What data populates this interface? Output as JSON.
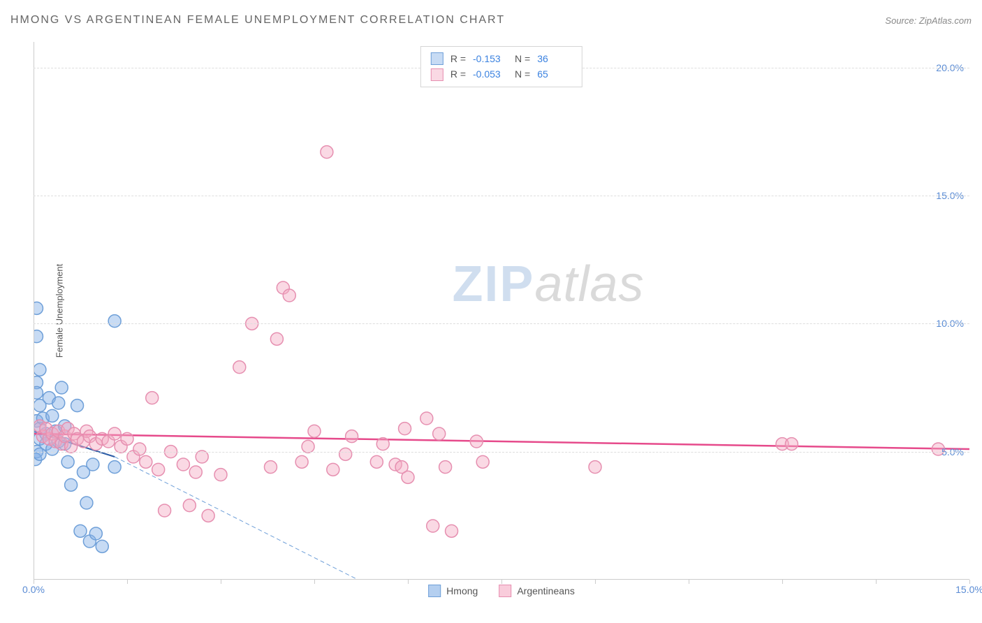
{
  "header": {
    "title": "HMONG VS ARGENTINEAN FEMALE UNEMPLOYMENT CORRELATION CHART",
    "source_label": "Source:",
    "source_value": "ZipAtlas.com"
  },
  "watermark": {
    "zip": "ZIP",
    "atlas": "atlas"
  },
  "chart": {
    "type": "scatter",
    "y_axis_label": "Female Unemployment",
    "background_color": "#ffffff",
    "grid_color": "#dddddd",
    "axis_color": "#cccccc",
    "tick_label_color": "#5b8cd4",
    "xlim": [
      0,
      15
    ],
    "ylim": [
      0,
      21
    ],
    "y_ticks": [
      5,
      10,
      15,
      20
    ],
    "y_tick_labels": [
      "5.0%",
      "10.0%",
      "15.0%",
      "20.0%"
    ],
    "x_ticks": [
      0,
      1.5,
      3,
      4.5,
      6,
      7.5,
      9,
      10.5,
      12,
      13.5,
      15
    ],
    "x_tick_labels_shown": {
      "0": "0.0%",
      "15": "15.0%"
    },
    "marker_radius": 9,
    "marker_stroke_width": 1.5,
    "series": [
      {
        "name": "Hmong",
        "fill_color": "rgba(130,175,230,0.45)",
        "stroke_color": "#6e9fd8",
        "stats": {
          "R": "-0.153",
          "N": "36"
        },
        "points": [
          [
            0.05,
            10.6
          ],
          [
            0.05,
            9.5
          ],
          [
            0.05,
            7.7
          ],
          [
            0.05,
            7.3
          ],
          [
            0.05,
            6.2
          ],
          [
            0.05,
            5.0
          ],
          [
            0.03,
            4.7
          ],
          [
            0.1,
            8.2
          ],
          [
            0.1,
            6.8
          ],
          [
            0.1,
            5.9
          ],
          [
            0.1,
            5.5
          ],
          [
            0.1,
            4.9
          ],
          [
            0.15,
            6.3
          ],
          [
            0.2,
            5.7
          ],
          [
            0.2,
            5.3
          ],
          [
            0.25,
            7.1
          ],
          [
            0.3,
            6.4
          ],
          [
            0.3,
            5.1
          ],
          [
            0.35,
            5.8
          ],
          [
            0.4,
            6.9
          ],
          [
            0.4,
            5.4
          ],
          [
            0.45,
            7.5
          ],
          [
            0.5,
            6.0
          ],
          [
            0.5,
            5.3
          ],
          [
            0.55,
            4.6
          ],
          [
            0.6,
            3.7
          ],
          [
            0.7,
            6.8
          ],
          [
            0.75,
            1.9
          ],
          [
            0.8,
            4.2
          ],
          [
            0.85,
            3.0
          ],
          [
            0.9,
            1.5
          ],
          [
            0.95,
            4.5
          ],
          [
            1.0,
            1.8
          ],
          [
            1.1,
            1.3
          ],
          [
            1.3,
            10.1
          ],
          [
            1.3,
            4.4
          ]
        ],
        "regression": {
          "solid": {
            "x1": 0,
            "y1": 5.8,
            "x2": 1.3,
            "y2": 4.8,
            "color": "#2c5da6",
            "width": 2
          },
          "dashed": {
            "x1": 1.3,
            "y1": 4.8,
            "x2": 5.2,
            "y2": 0,
            "color": "#6e9fd8",
            "width": 1,
            "dash": "6 4"
          }
        }
      },
      {
        "name": "Argentineans",
        "fill_color": "rgba(245,170,195,0.45)",
        "stroke_color": "#e68fb0",
        "stats": {
          "R": "-0.053",
          "N": "65"
        },
        "points": [
          [
            0.1,
            6.0
          ],
          [
            0.15,
            5.6
          ],
          [
            0.2,
            5.9
          ],
          [
            0.25,
            5.5
          ],
          [
            0.3,
            5.7
          ],
          [
            0.35,
            5.4
          ],
          [
            0.4,
            5.8
          ],
          [
            0.45,
            5.3
          ],
          [
            0.5,
            5.6
          ],
          [
            0.55,
            5.9
          ],
          [
            0.6,
            5.2
          ],
          [
            0.65,
            5.7
          ],
          [
            0.7,
            5.5
          ],
          [
            0.8,
            5.4
          ],
          [
            0.85,
            5.8
          ],
          [
            0.9,
            5.6
          ],
          [
            1.0,
            5.3
          ],
          [
            1.1,
            5.5
          ],
          [
            1.2,
            5.4
          ],
          [
            1.3,
            5.7
          ],
          [
            1.4,
            5.2
          ],
          [
            1.5,
            5.5
          ],
          [
            1.6,
            4.8
          ],
          [
            1.7,
            5.1
          ],
          [
            1.8,
            4.6
          ],
          [
            1.9,
            7.1
          ],
          [
            2.0,
            4.3
          ],
          [
            2.1,
            2.7
          ],
          [
            2.2,
            5.0
          ],
          [
            2.4,
            4.5
          ],
          [
            2.5,
            2.9
          ],
          [
            2.6,
            4.2
          ],
          [
            2.7,
            4.8
          ],
          [
            2.8,
            2.5
          ],
          [
            3.0,
            4.1
          ],
          [
            3.3,
            8.3
          ],
          [
            3.5,
            10.0
          ],
          [
            3.8,
            4.4
          ],
          [
            3.9,
            9.4
          ],
          [
            4.0,
            11.4
          ],
          [
            4.1,
            11.1
          ],
          [
            4.3,
            4.6
          ],
          [
            4.4,
            5.2
          ],
          [
            4.5,
            5.8
          ],
          [
            4.7,
            16.7
          ],
          [
            4.8,
            4.3
          ],
          [
            5.0,
            4.9
          ],
          [
            5.1,
            5.6
          ],
          [
            5.5,
            4.6
          ],
          [
            5.6,
            5.3
          ],
          [
            5.8,
            4.5
          ],
          [
            5.9,
            4.4
          ],
          [
            5.95,
            5.9
          ],
          [
            6.0,
            4.0
          ],
          [
            6.3,
            6.3
          ],
          [
            6.4,
            2.1
          ],
          [
            6.5,
            5.7
          ],
          [
            6.6,
            4.4
          ],
          [
            6.7,
            1.9
          ],
          [
            7.1,
            5.4
          ],
          [
            7.2,
            4.6
          ],
          [
            9.0,
            4.4
          ],
          [
            12.0,
            5.3
          ],
          [
            12.15,
            5.3
          ],
          [
            14.5,
            5.1
          ]
        ],
        "regression": {
          "solid": {
            "x1": 0,
            "y1": 5.7,
            "x2": 15,
            "y2": 5.1,
            "color": "#e64a8b",
            "width": 2.5
          }
        }
      }
    ],
    "legend_top": {
      "R_label": "R =",
      "N_label": "N ="
    },
    "legend_bottom": [
      {
        "label": "Hmong",
        "fill": "rgba(130,175,230,0.6)",
        "stroke": "#6e9fd8"
      },
      {
        "label": "Argentineans",
        "fill": "rgba(245,170,195,0.6)",
        "stroke": "#e68fb0"
      }
    ]
  }
}
